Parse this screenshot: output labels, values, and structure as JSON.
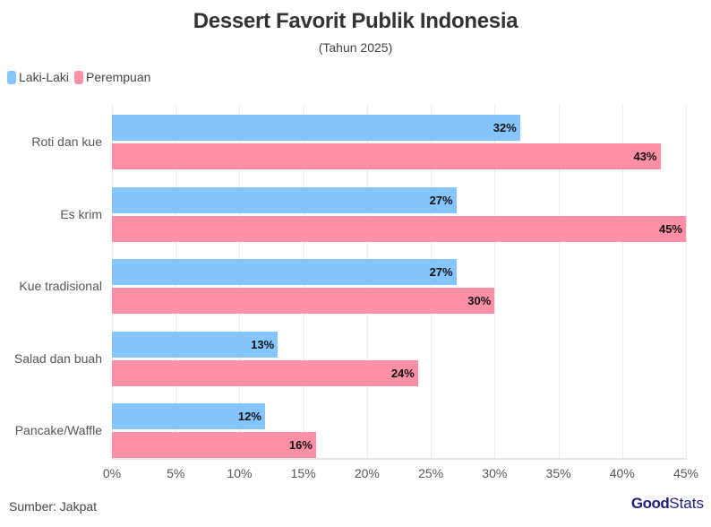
{
  "header": {
    "title": "Dessert Favorit Publik Indonesia",
    "subtitle": "(Tahun 2025)"
  },
  "legend": [
    {
      "label": "Laki-Laki",
      "color": "#85c4fc"
    },
    {
      "label": "Perempuan",
      "color": "#ff8fa6"
    }
  ],
  "footer": {
    "source": "Sumber: Jakpat",
    "logo_bold": "Good",
    "logo_light": "Stats"
  },
  "axis": {
    "ticks": [
      "0%",
      "5%",
      "10%",
      "15%",
      "20%",
      "25%",
      "30%",
      "35%",
      "40%",
      "45%"
    ]
  },
  "chart_data": {
    "type": "bar",
    "orientation": "horizontal",
    "title": "Dessert Favorit Publik Indonesia",
    "subtitle": "(Tahun 2025)",
    "categories": [
      "Roti dan kue",
      "Es krim",
      "Kue tradisional",
      "Salad dan buah",
      "Pancake/Waffle"
    ],
    "series": [
      {
        "name": "Laki-Laki",
        "color": "#85c4fc",
        "values": [
          32,
          27,
          27,
          13,
          12
        ],
        "labels": [
          "32%",
          "27%",
          "27%",
          "13%",
          "12%"
        ]
      },
      {
        "name": "Perempuan",
        "color": "#ff8fa6",
        "values": [
          43,
          45,
          30,
          24,
          16
        ],
        "labels": [
          "43%",
          "45%",
          "30%",
          "24%",
          "16%"
        ]
      }
    ],
    "xlabel": "",
    "ylabel": "",
    "xlim": [
      0,
      45
    ],
    "x_tick_labels": [
      "0%",
      "5%",
      "10%",
      "15%",
      "20%",
      "25%",
      "30%",
      "35%",
      "40%",
      "45%"
    ],
    "grid": true,
    "legend_position": "top-left",
    "source": "Sumber: Jakpat"
  }
}
